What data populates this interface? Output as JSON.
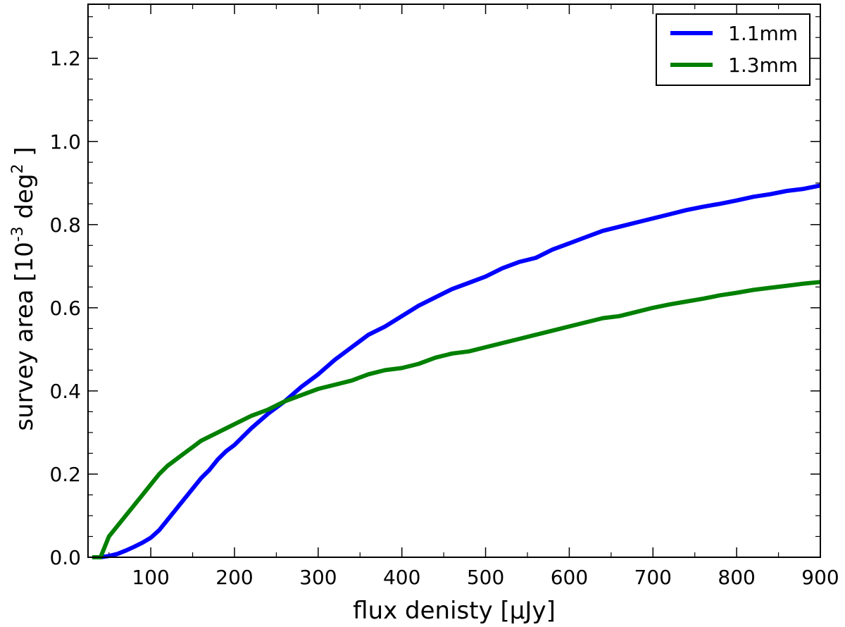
{
  "chart_data": {
    "type": "line",
    "title": "",
    "xlabel": "flux denisty [µJy]",
    "ylabel": {
      "prefix": "survey area [10",
      "exp1": "-3",
      "mid": " deg",
      "exp2": "2",
      "suffix": " ]"
    },
    "xlim": [
      25,
      900
    ],
    "ylim": [
      0.0,
      1.33
    ],
    "xticks": [
      100,
      200,
      300,
      400,
      500,
      600,
      700,
      800,
      900
    ],
    "xtick_labels": [
      "100",
      "200",
      "300",
      "400",
      "500",
      "600",
      "700",
      "800",
      "900"
    ],
    "yticks": [
      0.0,
      0.2,
      0.4,
      0.6,
      0.8,
      1.0,
      1.2
    ],
    "ytick_labels": [
      "0.0",
      "0.2",
      "0.4",
      "0.6",
      "0.8",
      "1.0",
      "1.2"
    ],
    "grid": false,
    "legend_position": "top-right",
    "series": [
      {
        "name": "1.1mm",
        "color": "#0000ff",
        "x": [
          30,
          40,
          50,
          60,
          70,
          80,
          90,
          100,
          110,
          120,
          130,
          140,
          150,
          160,
          170,
          180,
          190,
          200,
          220,
          240,
          260,
          280,
          300,
          320,
          340,
          360,
          380,
          400,
          420,
          440,
          460,
          480,
          500,
          520,
          540,
          560,
          580,
          600,
          620,
          640,
          660,
          680,
          700,
          720,
          740,
          760,
          780,
          800,
          820,
          840,
          860,
          880,
          900
        ],
        "y": [
          0.0,
          0.0,
          0.003,
          0.008,
          0.016,
          0.025,
          0.035,
          0.047,
          0.065,
          0.09,
          0.115,
          0.14,
          0.165,
          0.19,
          0.21,
          0.235,
          0.255,
          0.27,
          0.31,
          0.345,
          0.375,
          0.41,
          0.44,
          0.475,
          0.505,
          0.535,
          0.555,
          0.58,
          0.605,
          0.625,
          0.645,
          0.66,
          0.675,
          0.695,
          0.71,
          0.72,
          0.74,
          0.755,
          0.77,
          0.785,
          0.795,
          0.805,
          0.815,
          0.825,
          0.835,
          0.843,
          0.85,
          0.858,
          0.867,
          0.873,
          0.881,
          0.886,
          0.894
        ]
      },
      {
        "name": "1.3mm",
        "color": "#008000",
        "x": [
          30,
          40,
          50,
          60,
          70,
          80,
          90,
          100,
          110,
          120,
          130,
          140,
          150,
          160,
          170,
          180,
          190,
          200,
          220,
          240,
          260,
          280,
          300,
          320,
          340,
          360,
          380,
          400,
          420,
          440,
          460,
          480,
          500,
          520,
          540,
          560,
          580,
          600,
          620,
          640,
          660,
          680,
          700,
          720,
          740,
          760,
          780,
          800,
          820,
          840,
          860,
          880,
          900
        ],
        "y": [
          0.0,
          0.0,
          0.05,
          0.075,
          0.1,
          0.125,
          0.15,
          0.175,
          0.2,
          0.22,
          0.235,
          0.25,
          0.265,
          0.28,
          0.29,
          0.3,
          0.31,
          0.32,
          0.34,
          0.355,
          0.375,
          0.39,
          0.405,
          0.415,
          0.425,
          0.44,
          0.45,
          0.455,
          0.465,
          0.48,
          0.49,
          0.495,
          0.505,
          0.515,
          0.525,
          0.535,
          0.545,
          0.555,
          0.565,
          0.575,
          0.58,
          0.59,
          0.6,
          0.608,
          0.615,
          0.622,
          0.63,
          0.636,
          0.643,
          0.648,
          0.653,
          0.658,
          0.662
        ]
      }
    ]
  }
}
